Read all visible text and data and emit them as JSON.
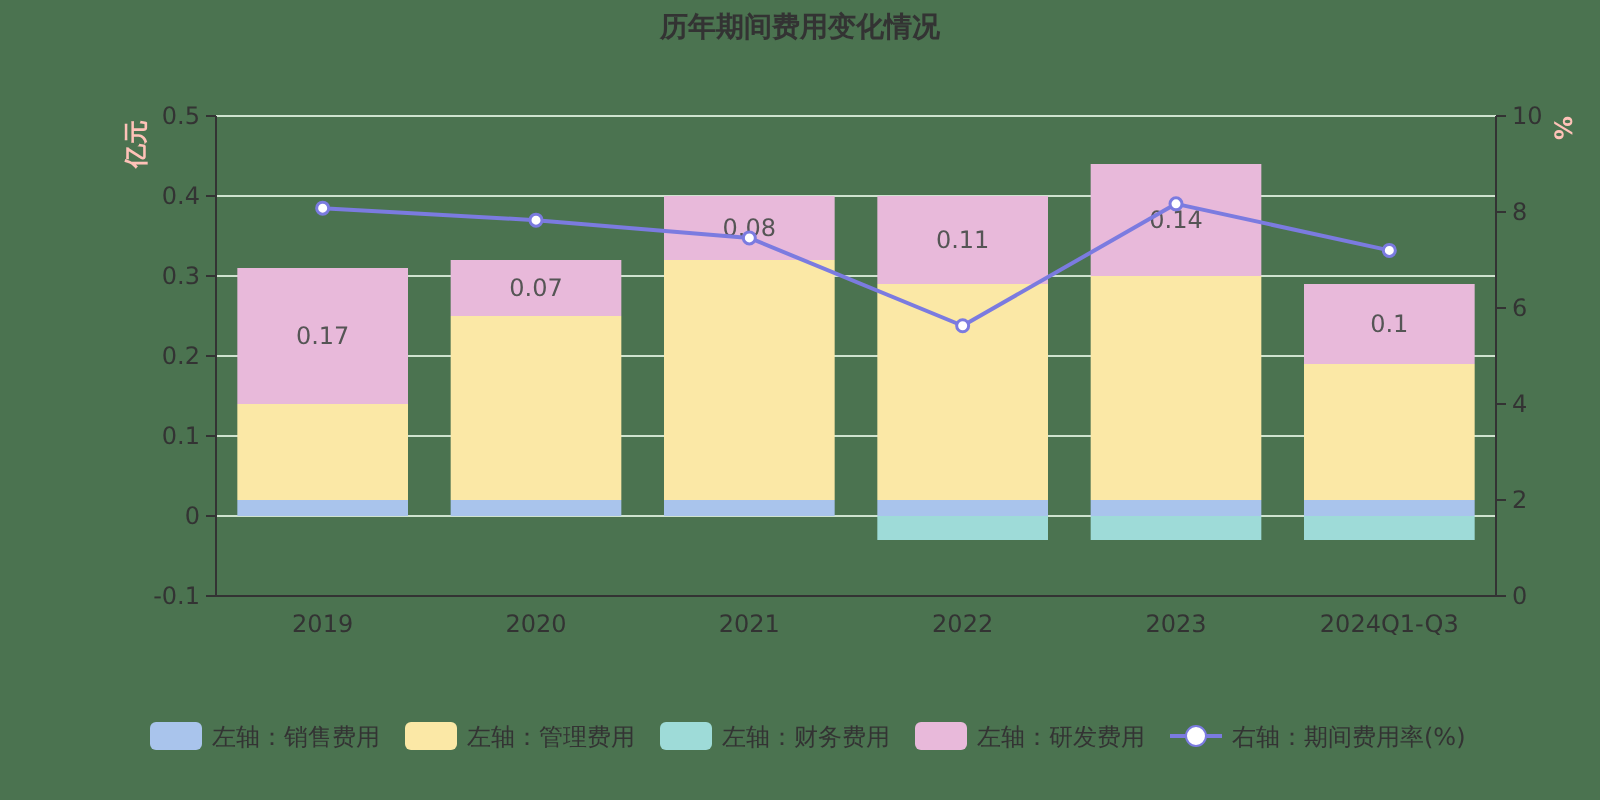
{
  "chart_data": {
    "type": "bar",
    "title": "历年期间费用变化情况",
    "ylabel": "亿元",
    "y2label": "%",
    "categories": [
      "2019",
      "2020",
      "2021",
      "2022",
      "2023",
      "2024Q1-Q3"
    ],
    "stacked": true,
    "series": [
      {
        "name": "左轴：销售费用",
        "color": "#a9c4ec",
        "values": [
          0.02,
          0.02,
          0.02,
          0.02,
          0.02,
          0.02
        ]
      },
      {
        "name": "左轴：管理费用",
        "color": "#fbe8a6",
        "values": [
          0.12,
          0.23,
          0.3,
          0.27,
          0.28,
          0.17
        ]
      },
      {
        "name": "左轴：财务费用",
        "color": "#9edbd8",
        "values": [
          0,
          0,
          0,
          -0.03,
          -0.03,
          -0.03
        ]
      },
      {
        "name": "左轴：研发费用",
        "color": "#e8b9da",
        "values": [
          0.17,
          0.07,
          0.08,
          0.11,
          0.14,
          0.1
        ],
        "value_labels": [
          "0.17",
          "0.07",
          "0.08",
          "0.11",
          "0.14",
          "0.1"
        ]
      },
      {
        "name": "右轴：期间费用率(%)",
        "type": "line",
        "axis": "y2",
        "color": "#7b7be0",
        "marker": "circle",
        "values": [
          8.08,
          7.83,
          7.46,
          5.63,
          8.17,
          7.2
        ]
      }
    ],
    "ylim": [
      -0.1,
      0.5
    ],
    "yticks": [
      -0.1,
      0,
      0.1,
      0.2,
      0.3,
      0.4,
      0.5
    ],
    "y2lim": [
      0,
      10
    ],
    "y2ticks": [
      0,
      2,
      4,
      6,
      8,
      10
    ],
    "grid": "y",
    "legend": "bottom"
  }
}
